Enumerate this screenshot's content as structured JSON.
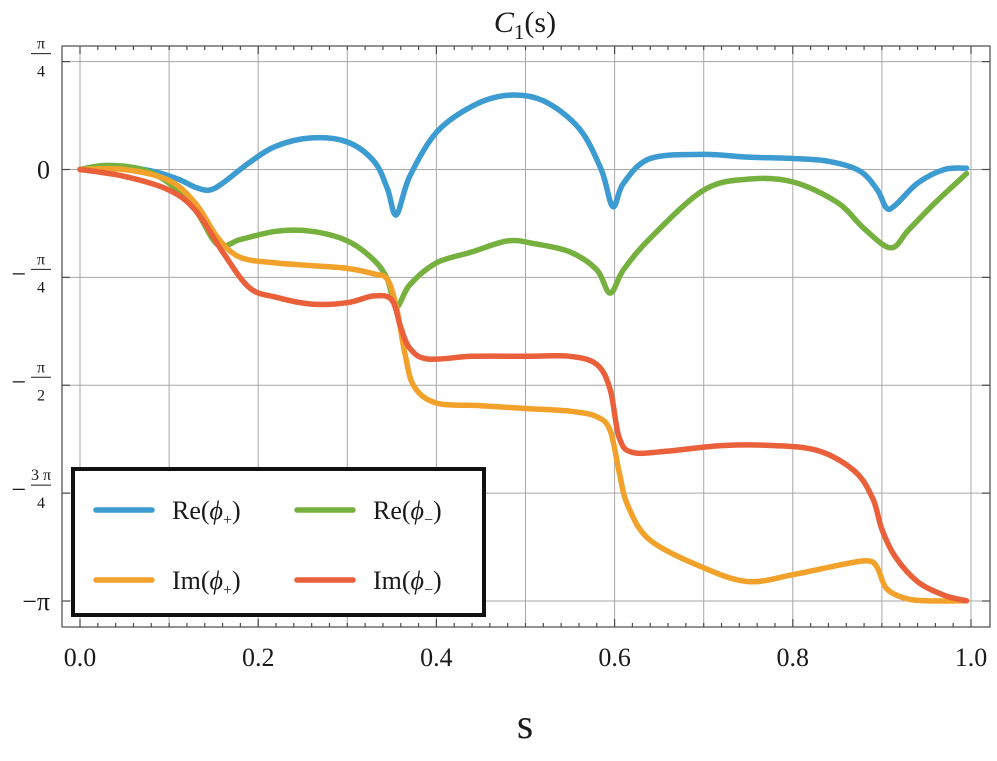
{
  "chart_data": {
    "type": "line",
    "title_main": "C",
    "title_sub": "1",
    "title_arg": "(s)",
    "xlabel": "s",
    "ylabel": "",
    "xlim": [
      0,
      1
    ],
    "ylim": [
      -3.3,
      0.8
    ],
    "grid": true,
    "legend_position": "bottom-left",
    "x_ticks": [
      {
        "value": 0.0,
        "label": "0.0"
      },
      {
        "value": 0.2,
        "label": "0.2"
      },
      {
        "value": 0.4,
        "label": "0.4"
      },
      {
        "value": 0.6,
        "label": "0.6"
      },
      {
        "value": 0.8,
        "label": "0.8"
      },
      {
        "value": 1.0,
        "label": "1.0"
      }
    ],
    "y_ticks": [
      {
        "value": 0.7854,
        "kind": "frac",
        "sign": "",
        "num": "π",
        "den": "4"
      },
      {
        "value": 0,
        "kind": "plain",
        "label": "0"
      },
      {
        "value": -0.7854,
        "kind": "frac",
        "sign": "−",
        "num": "π",
        "den": "4"
      },
      {
        "value": -1.5708,
        "kind": "frac",
        "sign": "−",
        "num": "π",
        "den": "2"
      },
      {
        "value": -2.3562,
        "kind": "frac",
        "sign": "−",
        "num": "3 π",
        "den": "4"
      },
      {
        "value": -3.1416,
        "kind": "plain",
        "label": "−π"
      }
    ],
    "series": [
      {
        "name": "Re(ϕ+)",
        "label_base": "Re(ϕ",
        "label_sub": "+",
        "color": "#3c9bd0",
        "points": [
          [
            0.0,
            0.0
          ],
          [
            0.04,
            0.02
          ],
          [
            0.08,
            -0.01
          ],
          [
            0.11,
            -0.07
          ],
          [
            0.13,
            -0.13
          ],
          [
            0.145,
            -0.15
          ],
          [
            0.16,
            -0.1
          ],
          [
            0.19,
            0.05
          ],
          [
            0.22,
            0.17
          ],
          [
            0.26,
            0.23
          ],
          [
            0.3,
            0.2
          ],
          [
            0.33,
            0.06
          ],
          [
            0.345,
            -0.14
          ],
          [
            0.355,
            -0.33
          ],
          [
            0.37,
            -0.05
          ],
          [
            0.4,
            0.27
          ],
          [
            0.44,
            0.46
          ],
          [
            0.48,
            0.54
          ],
          [
            0.52,
            0.5
          ],
          [
            0.56,
            0.3
          ],
          [
            0.585,
            0.0
          ],
          [
            0.598,
            -0.27
          ],
          [
            0.61,
            -0.1
          ],
          [
            0.64,
            0.08
          ],
          [
            0.7,
            0.11
          ],
          [
            0.75,
            0.09
          ],
          [
            0.8,
            0.08
          ],
          [
            0.84,
            0.06
          ],
          [
            0.875,
            -0.01
          ],
          [
            0.895,
            -0.15
          ],
          [
            0.905,
            -0.28
          ],
          [
            0.915,
            -0.26
          ],
          [
            0.94,
            -0.1
          ],
          [
            0.97,
            0.0
          ],
          [
            0.995,
            0.01
          ]
        ]
      },
      {
        "name": "Re(ϕ−)",
        "label_base": "Re(ϕ",
        "label_sub": "−",
        "color": "#76b140",
        "points": [
          [
            0.0,
            0.0
          ],
          [
            0.03,
            0.03
          ],
          [
            0.07,
            0.0
          ],
          [
            0.1,
            -0.1
          ],
          [
            0.13,
            -0.3
          ],
          [
            0.155,
            -0.55
          ],
          [
            0.18,
            -0.51
          ],
          [
            0.22,
            -0.45
          ],
          [
            0.26,
            -0.45
          ],
          [
            0.3,
            -0.52
          ],
          [
            0.33,
            -0.66
          ],
          [
            0.345,
            -0.8
          ],
          [
            0.355,
            -1.0
          ],
          [
            0.37,
            -0.84
          ],
          [
            0.4,
            -0.68
          ],
          [
            0.44,
            -0.6
          ],
          [
            0.48,
            -0.52
          ],
          [
            0.51,
            -0.54
          ],
          [
            0.55,
            -0.6
          ],
          [
            0.58,
            -0.73
          ],
          [
            0.595,
            -0.9
          ],
          [
            0.61,
            -0.73
          ],
          [
            0.64,
            -0.5
          ],
          [
            0.7,
            -0.15
          ],
          [
            0.75,
            -0.07
          ],
          [
            0.8,
            -0.09
          ],
          [
            0.85,
            -0.24
          ],
          [
            0.88,
            -0.43
          ],
          [
            0.91,
            -0.57
          ],
          [
            0.93,
            -0.44
          ],
          [
            0.96,
            -0.24
          ],
          [
            0.995,
            -0.03
          ]
        ]
      },
      {
        "name": "Im(ϕ+)",
        "label_base": "Im(ϕ",
        "label_sub": "+",
        "color": "#f2a22b",
        "points": [
          [
            0.0,
            0.0
          ],
          [
            0.05,
            0.0
          ],
          [
            0.1,
            -0.08
          ],
          [
            0.13,
            -0.25
          ],
          [
            0.155,
            -0.5
          ],
          [
            0.18,
            -0.64
          ],
          [
            0.22,
            -0.68
          ],
          [
            0.26,
            -0.7
          ],
          [
            0.3,
            -0.72
          ],
          [
            0.33,
            -0.76
          ],
          [
            0.345,
            -0.8
          ],
          [
            0.355,
            -1.0
          ],
          [
            0.365,
            -1.35
          ],
          [
            0.375,
            -1.58
          ],
          [
            0.4,
            -1.7
          ],
          [
            0.45,
            -1.72
          ],
          [
            0.5,
            -1.74
          ],
          [
            0.55,
            -1.76
          ],
          [
            0.58,
            -1.8
          ],
          [
            0.595,
            -1.9
          ],
          [
            0.605,
            -2.2
          ],
          [
            0.615,
            -2.45
          ],
          [
            0.64,
            -2.7
          ],
          [
            0.7,
            -2.9
          ],
          [
            0.75,
            -3.0
          ],
          [
            0.8,
            -2.95
          ],
          [
            0.86,
            -2.87
          ],
          [
            0.885,
            -2.85
          ],
          [
            0.895,
            -2.9
          ],
          [
            0.905,
            -3.05
          ],
          [
            0.925,
            -3.12
          ],
          [
            0.95,
            -3.14
          ],
          [
            0.995,
            -3.14
          ]
        ]
      },
      {
        "name": "Im(ϕ−)",
        "label_base": "Im(ϕ",
        "label_sub": "−",
        "color": "#e9603b",
        "points": [
          [
            0.0,
            0.0
          ],
          [
            0.05,
            -0.05
          ],
          [
            0.1,
            -0.15
          ],
          [
            0.13,
            -0.3
          ],
          [
            0.16,
            -0.6
          ],
          [
            0.19,
            -0.86
          ],
          [
            0.22,
            -0.93
          ],
          [
            0.26,
            -0.98
          ],
          [
            0.3,
            -0.97
          ],
          [
            0.33,
            -0.92
          ],
          [
            0.35,
            -0.95
          ],
          [
            0.36,
            -1.15
          ],
          [
            0.37,
            -1.3
          ],
          [
            0.39,
            -1.38
          ],
          [
            0.44,
            -1.36
          ],
          [
            0.5,
            -1.36
          ],
          [
            0.55,
            -1.36
          ],
          [
            0.58,
            -1.42
          ],
          [
            0.595,
            -1.6
          ],
          [
            0.605,
            -1.95
          ],
          [
            0.62,
            -2.06
          ],
          [
            0.66,
            -2.05
          ],
          [
            0.72,
            -2.01
          ],
          [
            0.78,
            -2.01
          ],
          [
            0.83,
            -2.05
          ],
          [
            0.87,
            -2.2
          ],
          [
            0.89,
            -2.4
          ],
          [
            0.9,
            -2.62
          ],
          [
            0.915,
            -2.82
          ],
          [
            0.94,
            -3.0
          ],
          [
            0.97,
            -3.1
          ],
          [
            0.995,
            -3.14
          ]
        ]
      }
    ]
  }
}
